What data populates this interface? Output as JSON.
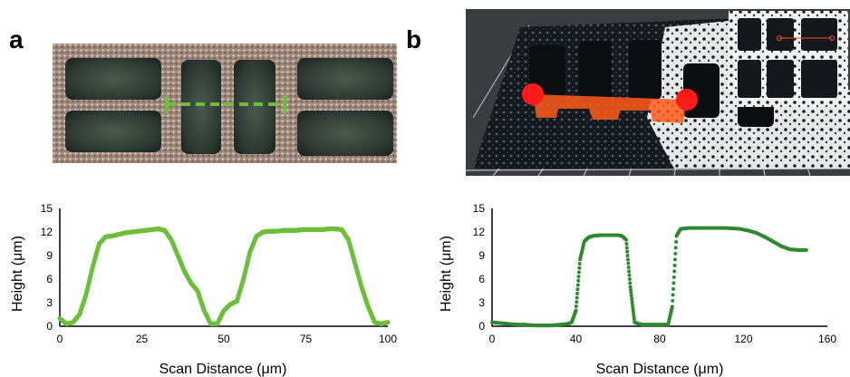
{
  "panels": [
    {
      "letter": "a",
      "chart_data": {
        "type": "line",
        "xlabel": "Scan Distance (μm)",
        "ylabel": "Height (μm)",
        "xlim": [
          0,
          100
        ],
        "ylim": [
          0,
          15
        ],
        "xticks": [
          0,
          25,
          50,
          75,
          100
        ],
        "yticks": [
          0,
          3,
          6,
          9,
          12,
          15
        ],
        "color": "#6cbf3a",
        "grid": false,
        "x": [
          0,
          2,
          4,
          6,
          8,
          10,
          12,
          14,
          16,
          18,
          20,
          22,
          24,
          26,
          28,
          30,
          32,
          34,
          36,
          38,
          40,
          42,
          44,
          46,
          48,
          50,
          52,
          54,
          56,
          58,
          60,
          62,
          64,
          66,
          68,
          70,
          72,
          74,
          76,
          78,
          80,
          82,
          84,
          86,
          88,
          90,
          92,
          94,
          96,
          98,
          100
        ],
        "y": [
          1.0,
          0.3,
          0.5,
          1.5,
          4.0,
          7.5,
          10.5,
          11.4,
          11.5,
          11.7,
          11.9,
          12.0,
          12.1,
          12.2,
          12.3,
          12.4,
          12.2,
          11.0,
          9.0,
          7.0,
          5.5,
          4.5,
          2.0,
          0.3,
          0.3,
          2.0,
          2.8,
          3.2,
          6.0,
          9.5,
          11.5,
          12.0,
          12.1,
          12.1,
          12.2,
          12.2,
          12.2,
          12.3,
          12.3,
          12.3,
          12.3,
          12.4,
          12.4,
          12.3,
          11.0,
          8.0,
          5.0,
          2.5,
          0.5,
          0.3,
          0.5
        ]
      },
      "annotation_color": "#6cbf3a"
    },
    {
      "letter": "b",
      "chart_data": {
        "type": "line",
        "xlabel": "Scan Distance (μm)",
        "ylabel": "Height (μm)",
        "xlim": [
          0,
          160
        ],
        "ylim": [
          0,
          15
        ],
        "xticks": [
          0,
          40,
          80,
          120,
          160
        ],
        "yticks": [
          0,
          3,
          6,
          9,
          12,
          15
        ],
        "color": "#2f8a2f",
        "grid": false,
        "x": [
          0,
          4,
          8,
          12,
          16,
          20,
          24,
          28,
          32,
          36,
          38,
          40,
          42,
          44,
          46,
          48,
          52,
          56,
          60,
          62,
          64,
          66,
          68,
          70,
          72,
          76,
          80,
          84,
          86,
          88,
          90,
          94,
          100,
          106,
          112,
          118,
          122,
          126,
          130,
          134,
          138,
          142,
          146,
          150
        ],
        "y": [
          0.5,
          0.4,
          0.3,
          0.2,
          0.2,
          0.1,
          0.1,
          0.1,
          0.2,
          0.3,
          0.5,
          2.0,
          8.5,
          10.8,
          11.3,
          11.5,
          11.6,
          11.6,
          11.6,
          11.5,
          11.0,
          5.0,
          0.5,
          0.3,
          0.2,
          0.2,
          0.2,
          0.2,
          2.5,
          11.5,
          12.4,
          12.5,
          12.5,
          12.5,
          12.5,
          12.4,
          12.2,
          11.9,
          11.4,
          10.8,
          10.2,
          9.8,
          9.7,
          9.7
        ]
      },
      "marker_color": "#ff1a1a",
      "band_color": "#ff5a1a"
    }
  ]
}
